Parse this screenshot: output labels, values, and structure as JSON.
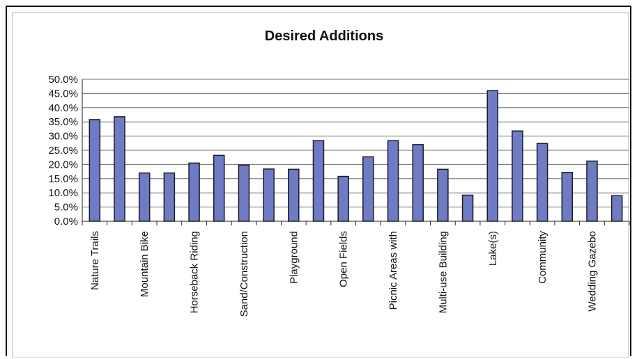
{
  "chart_data": {
    "type": "bar",
    "title": "Desired Additions",
    "xlabel": "",
    "ylabel": "",
    "ylim": [
      0,
      50
    ],
    "y_ticks": [
      "0.0%",
      "5.0%",
      "10.0%",
      "15.0%",
      "20.0%",
      "25.0%",
      "30.0%",
      "35.0%",
      "40.0%",
      "45.0%",
      "50.0%"
    ],
    "grid": true,
    "legend": "none",
    "bar_color": "#6f7cc4",
    "bar_stroke": "#1a1a2a",
    "categories": [
      "Nature Trails",
      "",
      "Mountain Bike",
      "",
      "Horseback Riding",
      "",
      "Sand/Construction",
      "",
      "Playground",
      "",
      "Open Fields",
      "",
      "Picnic Areas with",
      "",
      "Multi-use Building",
      "",
      "Lake(s)",
      "",
      "Community",
      "",
      "Wedding Gazebo",
      ""
    ],
    "values": [
      35.8,
      36.8,
      17.0,
      17.0,
      20.5,
      23.2,
      19.8,
      18.4,
      18.3,
      28.4,
      15.8,
      22.7,
      28.4,
      27.0,
      18.3,
      9.2,
      46.0,
      31.8,
      27.4,
      17.2,
      21.2,
      9.0
    ]
  }
}
